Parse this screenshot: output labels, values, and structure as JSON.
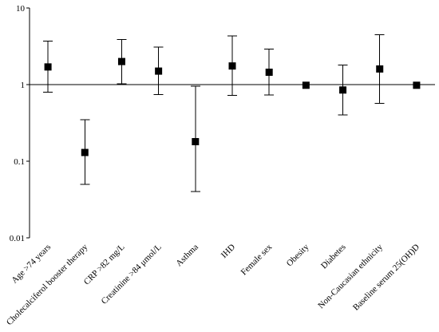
{
  "chart_data": {
    "type": "scatter",
    "title": "",
    "xlabel": "",
    "ylabel": "",
    "yscale": "log",
    "ylim": [
      0.01,
      10
    ],
    "reference_line": 1,
    "grid": false,
    "legend": "none",
    "y_ticks": [
      {
        "value": 10,
        "label": "10"
      },
      {
        "value": 1,
        "label": "1"
      },
      {
        "value": 0.1,
        "label": "0.1"
      },
      {
        "value": 0.01,
        "label": "0.01"
      }
    ],
    "categories": [
      "Age >74 years",
      "Cholecalciferol booster therapy",
      "CRP >82 mg/L",
      "Creatinine >84 μmol/L",
      "Asthma",
      "IHD",
      "Female sex",
      "Obesity",
      "Diabetes",
      "Non-Caucasian ethnicity",
      "Baseline serum 25(OH)D"
    ],
    "series": [
      {
        "values": [
          1.7,
          0.13,
          2.0,
          1.5,
          0.18,
          1.75,
          1.45,
          0.98,
          0.85,
          1.6,
          0.98
        ],
        "lower": [
          0.8,
          0.05,
          1.02,
          0.74,
          0.04,
          0.72,
          0.73,
          null,
          0.4,
          0.57,
          null
        ],
        "upper": [
          3.7,
          0.35,
          3.9,
          3.1,
          0.95,
          4.3,
          2.9,
          null,
          1.8,
          4.5,
          null
        ]
      }
    ]
  }
}
